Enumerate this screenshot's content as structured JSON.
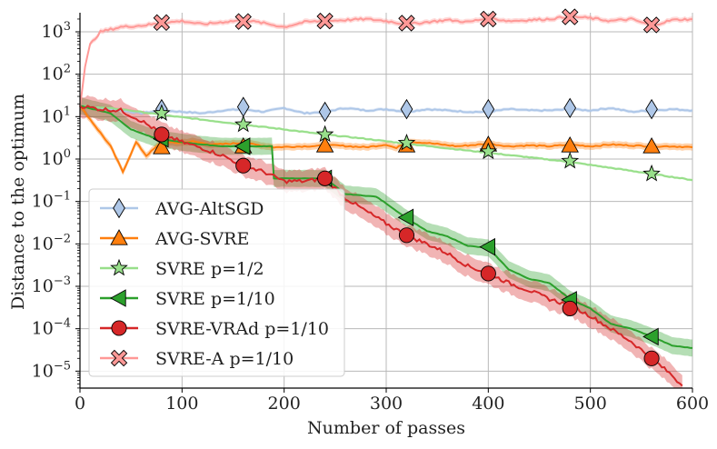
{
  "chart_data": {
    "type": "line",
    "title": "",
    "xlabel": "Number of passes",
    "ylabel": "Distance to the optimum",
    "xlim": [
      0,
      600
    ],
    "ylim_log10": [
      -5.4,
      3.45
    ],
    "yscale": "log",
    "grid": true,
    "legend_position": "lower-left",
    "x_ticks": [
      0,
      100,
      200,
      300,
      400,
      500,
      600
    ],
    "x_tick_labels": [
      "0",
      "100",
      "200",
      "300",
      "400",
      "500",
      "600"
    ],
    "y_ticks_log10": [
      -5,
      -4,
      -3,
      -2,
      -1,
      0,
      1,
      2,
      3
    ],
    "y_tick_labels": [
      {
        "base": "10",
        "exp": "−5"
      },
      {
        "base": "10",
        "exp": "−4"
      },
      {
        "base": "10",
        "exp": "−3"
      },
      {
        "base": "10",
        "exp": "−2"
      },
      {
        "base": "10",
        "exp": "−1"
      },
      {
        "base": "10",
        "exp": "0"
      },
      {
        "base": "10",
        "exp": "1"
      },
      {
        "base": "10",
        "exp": "2"
      },
      {
        "base": "10",
        "exp": "3"
      }
    ],
    "series": [
      {
        "name": "AVG-AltSGD",
        "color": "#aec7e8",
        "marker": "diamond",
        "marker_color": "#aec7e8",
        "x": [
          0,
          20,
          40,
          60,
          80,
          100,
          120,
          140,
          160,
          180,
          200,
          220,
          240,
          260,
          280,
          300,
          320,
          340,
          360,
          380,
          400,
          420,
          440,
          460,
          480,
          500,
          520,
          540,
          560,
          580,
          600
        ],
        "y": [
          18,
          16,
          14,
          12,
          14,
          13,
          12,
          14,
          15,
          13,
          16,
          12,
          13,
          16,
          14,
          15,
          13,
          15,
          14,
          13,
          13,
          15,
          14,
          14,
          15,
          14,
          16,
          13,
          14,
          15,
          14
        ],
        "markers_x": [
          80,
          160,
          240,
          320,
          400,
          480,
          560
        ],
        "markers_y": [
          15,
          17,
          13,
          15,
          15,
          16,
          15
        ]
      },
      {
        "name": "AVG-SVRE",
        "color": "#ff7f0e",
        "marker": "triangle",
        "marker_color": "#ff7f0e",
        "x": [
          0,
          15,
          30,
          42,
          55,
          65,
          80,
          95,
          110,
          130,
          160,
          190,
          220,
          250,
          280,
          300,
          310,
          320,
          340,
          370,
          400,
          420,
          440,
          460,
          480,
          500,
          520,
          540,
          560,
          580,
          600
        ],
        "y": [
          18,
          6,
          2,
          0.5,
          2.5,
          1.2,
          2.5,
          2.4,
          2.6,
          2.2,
          2.4,
          1.9,
          2.0,
          2.1,
          1.9,
          2.2,
          1.8,
          2.6,
          2.4,
          2.0,
          2.3,
          2.0,
          2.1,
          2.0,
          2.2,
          2.0,
          2.2,
          2.1,
          2.0,
          2.0,
          1.9
        ],
        "markers_x": [
          80,
          160,
          240,
          320,
          400,
          480,
          560
        ],
        "markers_y": [
          1.9,
          2.0,
          2.1,
          2.1,
          2.2,
          2.1,
          2.0
        ]
      },
      {
        "name": "SVRE p=1/2",
        "color": "#98df8a",
        "marker": "star",
        "marker_color": "#98df8a",
        "x": [
          0,
          40,
          80,
          120,
          160,
          200,
          240,
          280,
          320,
          360,
          400,
          440,
          480,
          520,
          560,
          600
        ],
        "y": [
          18,
          15,
          11,
          8.5,
          6.5,
          5,
          3.8,
          3.0,
          2.3,
          1.8,
          1.4,
          1.1,
          0.85,
          0.62,
          0.45,
          0.32
        ],
        "markers_x": [
          80,
          160,
          240,
          320,
          400,
          480,
          560
        ],
        "markers_y": [
          12,
          6.5,
          3.8,
          2.4,
          1.5,
          0.9,
          0.45
        ]
      },
      {
        "name": "SVRE p=1/10",
        "color": "#2ca02c",
        "marker": "triangle-left",
        "marker_color": "#2ca02c",
        "x": [
          0,
          30,
          50,
          75,
          100,
          120,
          140,
          160,
          188,
          190,
          210,
          240,
          260,
          290,
          300,
          320,
          340,
          360,
          380,
          400,
          420,
          440,
          460,
          480,
          500,
          520,
          540,
          560,
          580,
          600
        ],
        "y": [
          18,
          12,
          5,
          3,
          2.5,
          2.2,
          2.0,
          2.0,
          2.0,
          0.35,
          0.35,
          0.35,
          0.15,
          0.13,
          0.09,
          0.04,
          0.02,
          0.015,
          0.009,
          0.008,
          0.0025,
          0.0015,
          0.0012,
          0.0005,
          0.0003,
          0.00013,
          0.0001,
          6.6e-05,
          4e-05,
          3.5e-05
        ],
        "markers_x": [
          80,
          160,
          240,
          320,
          400,
          480,
          560
        ],
        "markers_y": [
          3.0,
          2.0,
          0.35,
          0.042,
          0.0085,
          0.00048,
          6.5e-05
        ]
      },
      {
        "name": "SVRE-VRAd p=1/10",
        "color": "#d62728",
        "marker": "circle",
        "marker_color": "#d62728",
        "x": [
          0,
          20,
          40,
          60,
          80,
          100,
          120,
          140,
          160,
          180,
          200,
          220,
          240,
          260,
          280,
          300,
          320,
          340,
          360,
          380,
          400,
          420,
          440,
          460,
          480,
          500,
          520,
          540,
          560,
          580,
          590
        ],
        "y": [
          18,
          15,
          14,
          8,
          4,
          2.5,
          1.8,
          1.2,
          0.7,
          0.5,
          0.3,
          0.3,
          0.35,
          0.12,
          0.06,
          0.03,
          0.016,
          0.01,
          0.006,
          0.003,
          0.002,
          0.0012,
          0.0008,
          0.0005,
          0.00035,
          0.0002,
          0.0001,
          5e-05,
          2e-05,
          8e-06,
          4.5e-06
        ],
        "markers_x": [
          80,
          160,
          240,
          320,
          400,
          480,
          560
        ],
        "markers_y": [
          3.8,
          0.7,
          0.35,
          0.016,
          0.002,
          0.0003,
          2e-05
        ]
      },
      {
        "name": "SVRE-A p=1/10",
        "color": "#ff9896",
        "marker": "x",
        "marker_color": "#ff9896",
        "x": [
          0,
          5,
          10,
          20,
          40,
          60,
          80,
          100,
          120,
          140,
          160,
          180,
          200,
          220,
          240,
          260,
          280,
          300,
          320,
          340,
          360,
          380,
          400,
          420,
          440,
          460,
          480,
          500,
          520,
          540,
          560,
          580,
          600
        ],
        "y": [
          18,
          150,
          500,
          1000,
          1300,
          1400,
          1600,
          1800,
          1500,
          1700,
          1900,
          1600,
          1300,
          1700,
          1800,
          1900,
          2000,
          1800,
          1500,
          1700,
          1900,
          1700,
          2100,
          1800,
          1900,
          2000,
          2300,
          2100,
          1800,
          2000,
          1400,
          1900,
          2000
        ],
        "markers_x": [
          80,
          160,
          240,
          320,
          400,
          480,
          560
        ],
        "markers_y": [
          1650,
          1750,
          1800,
          1600,
          2000,
          2250,
          1450
        ]
      }
    ]
  }
}
